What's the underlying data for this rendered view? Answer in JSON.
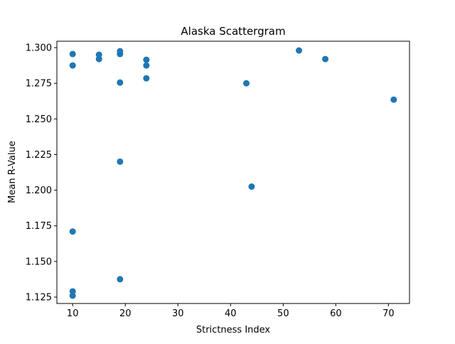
{
  "chart_data": {
    "type": "scatter",
    "title": "Alaska Scattergram",
    "xlabel": "Strictness Index",
    "ylabel": "Mean R-Value",
    "xlim": [
      7,
      74
    ],
    "ylim": [
      1.1205,
      1.3045
    ],
    "xticks": [
      10,
      20,
      30,
      40,
      50,
      60,
      70
    ],
    "xtick_labels": [
      "10",
      "20",
      "30",
      "40",
      "50",
      "60",
      "70"
    ],
    "yticks": [
      1.125,
      1.15,
      1.175,
      1.2,
      1.225,
      1.25,
      1.275,
      1.3
    ],
    "ytick_labels": [
      "1.125",
      "1.150",
      "1.175",
      "1.200",
      "1.225",
      "1.250",
      "1.275",
      "1.300"
    ],
    "grid": false,
    "marker_color": "#1f77b4",
    "series": [
      {
        "points": [
          {
            "x": 10,
            "y": 1.2955
          },
          {
            "x": 10,
            "y": 1.2875
          },
          {
            "x": 10,
            "y": 1.171
          },
          {
            "x": 10,
            "y": 1.129
          },
          {
            "x": 10,
            "y": 1.126
          },
          {
            "x": 15,
            "y": 1.295
          },
          {
            "x": 15,
            "y": 1.292
          },
          {
            "x": 19,
            "y": 1.2975
          },
          {
            "x": 19,
            "y": 1.2955
          },
          {
            "x": 19,
            "y": 1.2755
          },
          {
            "x": 19,
            "y": 1.22
          },
          {
            "x": 19,
            "y": 1.1375
          },
          {
            "x": 24,
            "y": 1.2915
          },
          {
            "x": 24,
            "y": 1.2875
          },
          {
            "x": 24,
            "y": 1.2785
          },
          {
            "x": 43,
            "y": 1.275
          },
          {
            "x": 44,
            "y": 1.2025
          },
          {
            "x": 53,
            "y": 1.298
          },
          {
            "x": 58,
            "y": 1.292
          },
          {
            "x": 71,
            "y": 1.2635
          }
        ]
      }
    ]
  }
}
